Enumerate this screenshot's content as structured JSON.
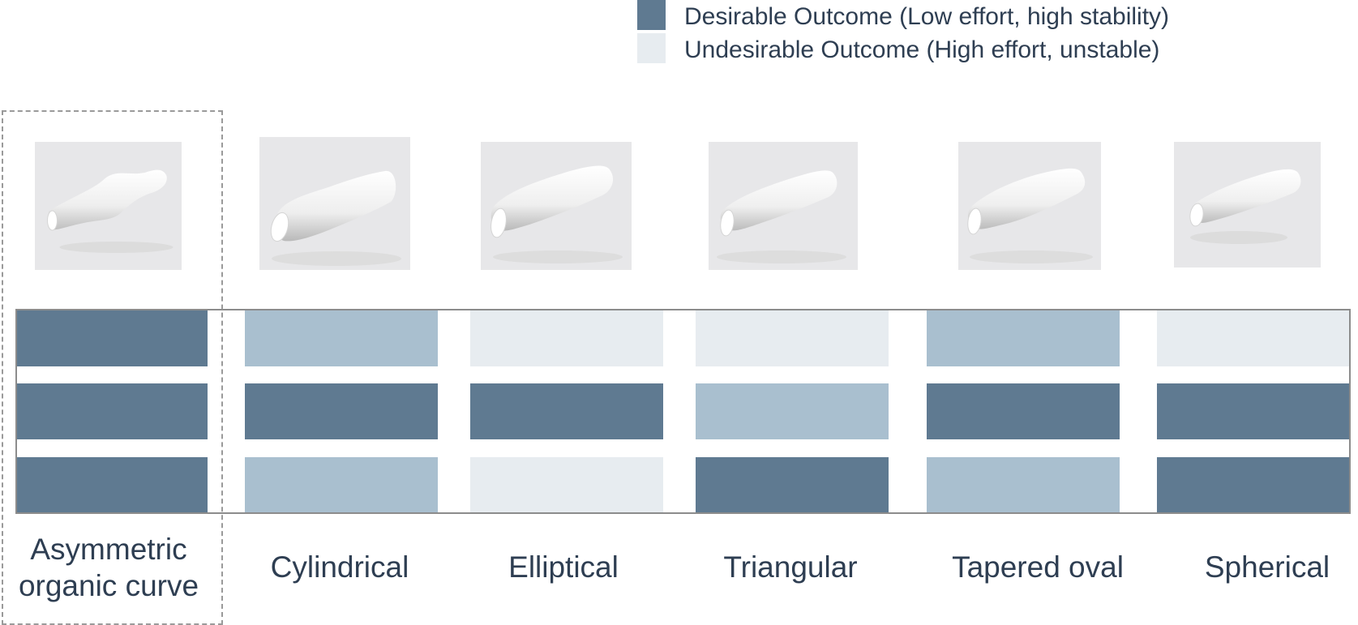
{
  "legend": {
    "items": [
      {
        "label": "Desirable Outcome (Low effort, high stability)",
        "color": "#5f7a91"
      },
      {
        "label": "Undesirable Outcome (High effort, unstable)",
        "color": "#e7ecf0"
      }
    ]
  },
  "colors": {
    "desirable": "#5f7a91",
    "intermediate": "#a9bfcf",
    "undesirable": "#e7ecf0",
    "frame": "#8c8c8c",
    "thumb_background": "#e7e7e9"
  },
  "chart_data": {
    "type": "heatmap",
    "title": "",
    "xlabel": "",
    "ylabel": "",
    "categories": [
      "Asymmetric organic curve",
      "Cylindrical",
      "Elliptical",
      "Triangular",
      "Tapered oval",
      "Spherical"
    ],
    "rows": 3,
    "levels": [
      "desirable",
      "intermediate",
      "undesirable"
    ],
    "values": [
      [
        "desirable",
        "intermediate",
        "undesirable",
        "undesirable",
        "intermediate",
        "undesirable"
      ],
      [
        "desirable",
        "desirable",
        "desirable",
        "intermediate",
        "desirable",
        "desirable"
      ],
      [
        "desirable",
        "intermediate",
        "undesirable",
        "desirable",
        "intermediate",
        "desirable"
      ]
    ],
    "highlighted_category": "Asymmetric organic curve"
  },
  "columns": [
    {
      "label_lines": [
        "Asymmetric",
        "organic curve"
      ],
      "shape_icon": "asymmetric-organic-curve-icon"
    },
    {
      "label_lines": [
        "Cylindrical"
      ],
      "shape_icon": "cylindrical-icon"
    },
    {
      "label_lines": [
        "Elliptical"
      ],
      "shape_icon": "elliptical-icon"
    },
    {
      "label_lines": [
        "Triangular"
      ],
      "shape_icon": "triangular-icon"
    },
    {
      "label_lines": [
        "Tapered oval"
      ],
      "shape_icon": "tapered-oval-icon"
    },
    {
      "label_lines": [
        "Spherical"
      ],
      "shape_icon": "spherical-icon"
    }
  ]
}
